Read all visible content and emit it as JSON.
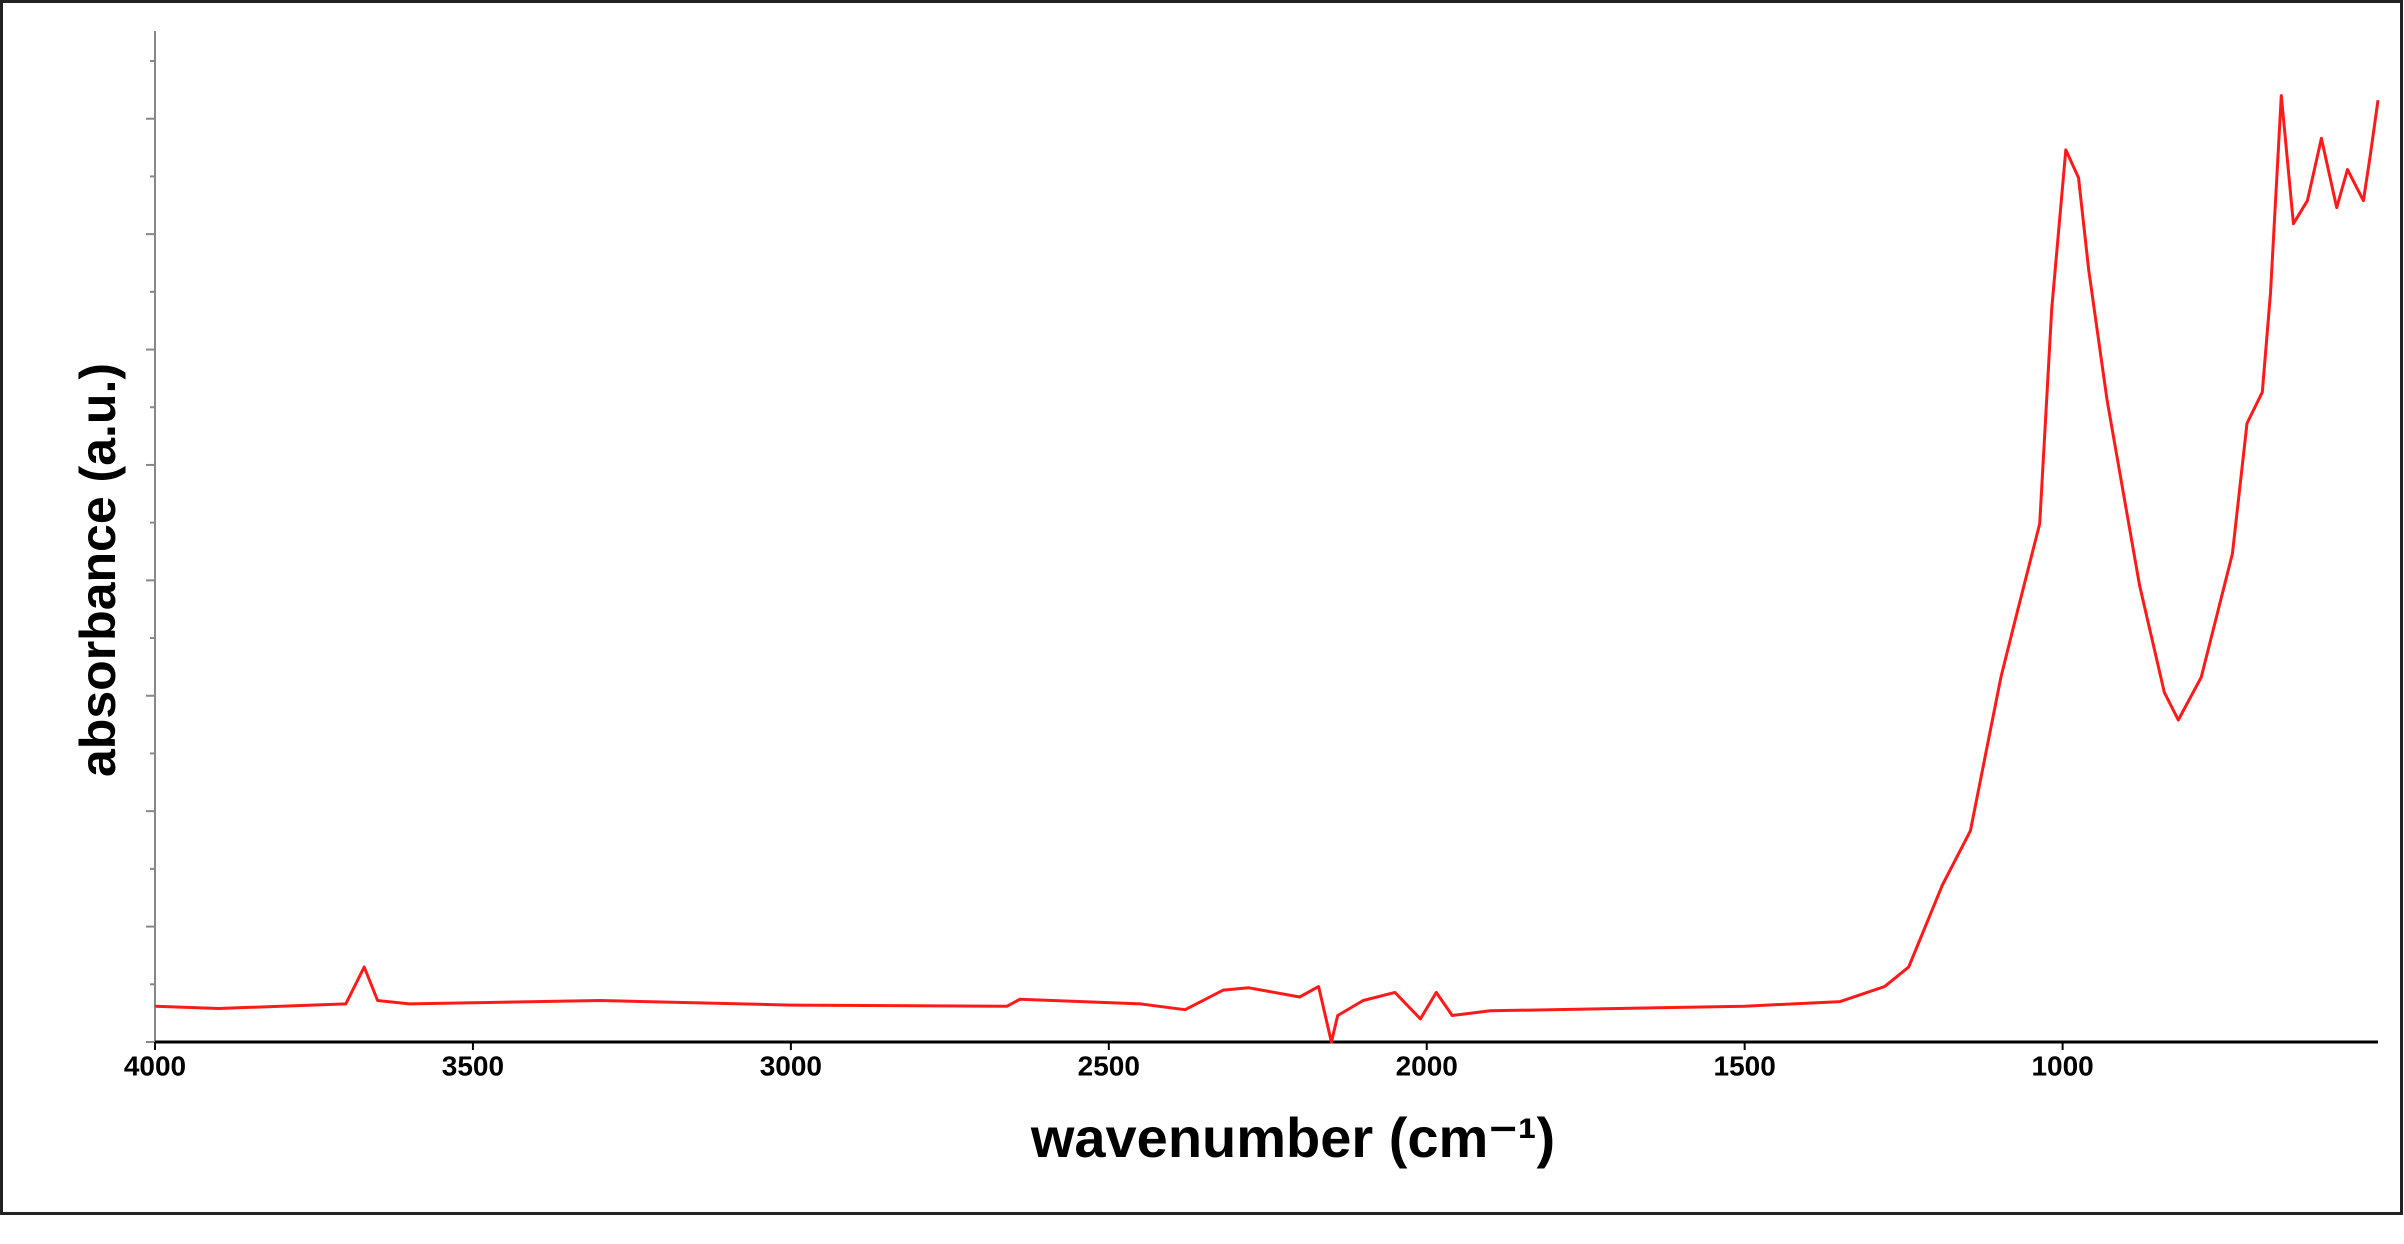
{
  "chart_data": {
    "type": "line",
    "x_label": "wavenumber (cm⁻¹)",
    "y_label": "absorbance (a.u.)",
    "x": [
      4000,
      3900,
      3700,
      3671,
      3650,
      3600,
      3300,
      3000,
      2660,
      2640,
      2450,
      2380,
      2320,
      2280,
      2200,
      2170,
      2150,
      2140,
      2100,
      2050,
      2010,
      1985,
      1960,
      1900,
      1700,
      1500,
      1350,
      1280,
      1242,
      1189,
      1145,
      1097,
      1073,
      1036,
      1017,
      995,
      975,
      959,
      930,
      879,
      840,
      818,
      782,
      733,
      710,
      686,
      673,
      656,
      637,
      615,
      593,
      569,
      552,
      527,
      516,
      504
    ],
    "values": [
      0.31,
      0.29,
      0.33,
      0.65,
      0.36,
      0.33,
      0.36,
      0.32,
      0.31,
      0.37,
      0.33,
      0.28,
      0.45,
      0.47,
      0.39,
      0.48,
      0.0,
      0.23,
      0.36,
      0.43,
      0.2,
      0.43,
      0.23,
      0.27,
      0.29,
      0.31,
      0.35,
      0.48,
      0.65,
      1.36,
      1.83,
      3.16,
      3.69,
      4.49,
      6.36,
      7.73,
      7.49,
      6.69,
      5.56,
      3.96,
      3.03,
      2.79,
      3.16,
      4.23,
      5.36,
      5.63,
      6.49,
      8.2,
      7.09,
      7.29,
      7.83,
      7.23,
      7.56,
      7.29,
      7.69,
      8.16
    ],
    "color": "#ff1a1a",
    "xlim": [
      4000,
      504
    ],
    "xticks": [
      4000,
      3500,
      3000,
      2500,
      2000,
      1500,
      1000
    ],
    "ylim": [
      0,
      8.76
    ],
    "yticks": [
      0,
      0.5,
      1,
      1.5,
      2,
      2.5,
      3,
      3.5,
      4,
      4.5,
      5,
      5.5,
      6,
      6.5,
      7,
      7.5,
      8,
      8.5
    ],
    "y_tick_labels": false
  }
}
